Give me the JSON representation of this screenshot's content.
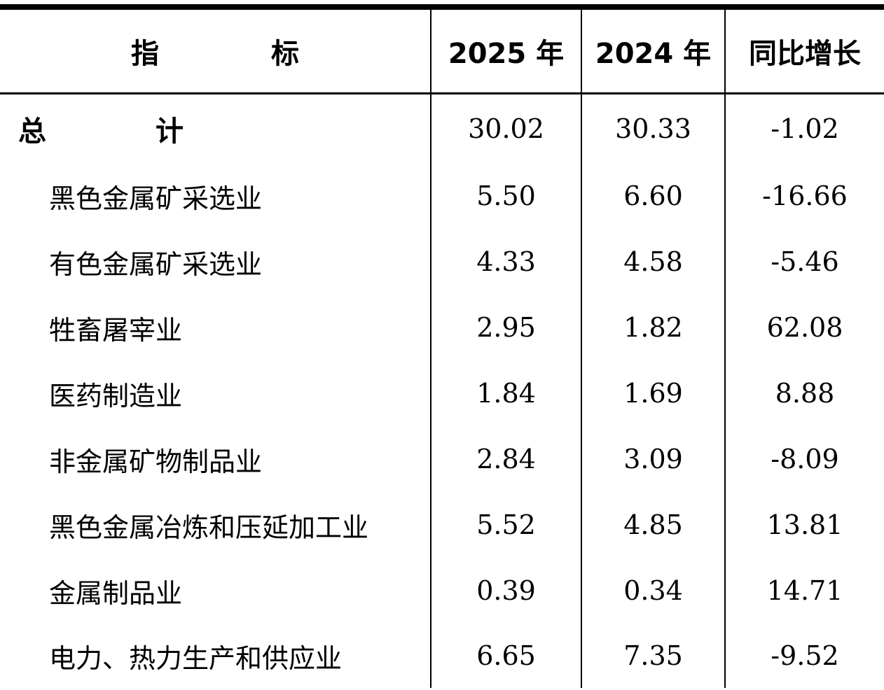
{
  "header": {
    "indicator": "指　标",
    "year_2025": "2025 年",
    "year_2024": "2024 年",
    "yoy_growth": "同比增长"
  },
  "rows": [
    {
      "name": "总　计",
      "v2025": "30.02",
      "v2024": "30.33",
      "growth": "-1.02"
    },
    {
      "name": "黑色金属矿采选业",
      "v2025": "5.50",
      "v2024": "6.60",
      "growth": "-16.66"
    },
    {
      "name": "有色金属矿采选业",
      "v2025": "4.33",
      "v2024": "4.58",
      "growth": "-5.46"
    },
    {
      "name": "牲畜屠宰业",
      "v2025": "2.95",
      "v2024": "1.82",
      "growth": "62.08"
    },
    {
      "name": "医药制造业",
      "v2025": "1.84",
      "v2024": "1.69",
      "growth": "8.88"
    },
    {
      "name": "非金属矿物制品业",
      "v2025": "2.84",
      "v2024": "3.09",
      "growth": "-8.09"
    },
    {
      "name": "黑色金属冶炼和压延加工业",
      "v2025": "5.52",
      "v2024": "4.85",
      "growth": "13.81"
    },
    {
      "name": "金属制品业",
      "v2025": "0.39",
      "v2024": "0.34",
      "growth": "14.71"
    },
    {
      "name": "电力、热力生产和供应业",
      "v2025": "6.65",
      "v2024": "7.35",
      "growth": "-9.52"
    }
  ]
}
